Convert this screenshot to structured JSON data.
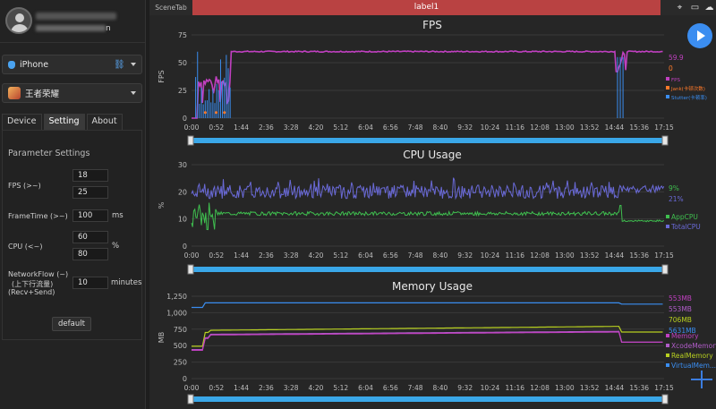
{
  "sidebar": {
    "profile": {
      "name_suffix": "n"
    },
    "device_select": {
      "value": "iPhone"
    },
    "app_select": {
      "value": "王者荣耀"
    },
    "tabs": [
      {
        "label": "Device",
        "active": false
      },
      {
        "label": "Setting",
        "active": true
      },
      {
        "label": "About",
        "active": false
      }
    ],
    "parameter_settings": {
      "title": "Parameter Settings",
      "fps_label": "FPS (>~)",
      "fps_values": [
        "18",
        "25"
      ],
      "frametime_label": "FrameTime (>~)",
      "frametime_value": "100",
      "frametime_unit": "ms",
      "cpu_label": "CPU (<~)",
      "cpu_values": [
        "60",
        "80"
      ],
      "cpu_unit": "%",
      "network_label_1": "NetworkFlow (~)",
      "network_label_2": "(上下行流量)",
      "network_label_3": "(Recv+Send)",
      "network_value": "10",
      "network_unit": "minutes",
      "default_button": "default"
    }
  },
  "topbar": {
    "scene_tab": "SceneTab",
    "label": "label1",
    "icons": [
      "location-pin-icon",
      "folder-icon",
      "cloud-icon"
    ]
  },
  "time_ticks": [
    "0:00",
    "0:52",
    "1:44",
    "2:36",
    "3:28",
    "4:20",
    "5:12",
    "6:04",
    "6:56",
    "7:48",
    "8:40",
    "9:32",
    "10:24",
    "11:16",
    "12:08",
    "13:00",
    "13:52",
    "14:44",
    "15:36",
    "17:15"
  ],
  "chart_data": [
    {
      "type": "line",
      "title": "FPS",
      "xlabel": "",
      "ylabel": "FPS",
      "ylim": [
        0,
        75
      ],
      "yticks": [
        "75",
        "50",
        "25",
        "0"
      ],
      "series": [
        {
          "name": "FPS",
          "color": "#c040c0",
          "current": "59.9"
        },
        {
          "name": "Jank(卡顿次数)",
          "color": "#ff7a2a",
          "current": "0"
        },
        {
          "name": "Stutter(卡顿率)",
          "color": "#3a8df0"
        }
      ],
      "fps_points": [
        [
          0,
          0
        ],
        [
          0.3,
          30
        ],
        [
          0.5,
          35
        ],
        [
          0.7,
          27
        ],
        [
          0.9,
          32
        ],
        [
          1.1,
          29
        ],
        [
          1.3,
          33
        ],
        [
          1.44,
          60
        ],
        [
          1.6,
          60
        ],
        [
          2.5,
          60
        ],
        [
          5,
          60
        ],
        [
          8,
          60
        ],
        [
          11,
          60
        ],
        [
          14,
          60
        ],
        [
          15.5,
          60
        ],
        [
          15.7,
          42
        ],
        [
          15.9,
          59
        ],
        [
          16.2,
          60
        ],
        [
          17.25,
          59.9
        ]
      ],
      "legend": "right"
    },
    {
      "type": "line",
      "title": "CPU Usage",
      "xlabel": "",
      "ylabel": "%",
      "ylim": [
        0,
        30
      ],
      "yticks": [
        "30",
        "20",
        "10",
        "0"
      ],
      "series": [
        {
          "name": "AppCPU",
          "color": "#3fbf4f",
          "current": "9%"
        },
        {
          "name": "TotalCPU",
          "color": "#6a6ad8",
          "current": "21%"
        }
      ],
      "legend": "right"
    },
    {
      "type": "line",
      "title": "Memory Usage",
      "xlabel": "",
      "ylabel": "MB",
      "ylim": [
        0,
        1250
      ],
      "yticks": [
        "1,250",
        "1,000",
        "750",
        "500",
        "250",
        "0"
      ],
      "series": [
        {
          "name": "Memory",
          "color": "#c040c0",
          "current": "553MB"
        },
        {
          "name": "XcodeMemory",
          "color": "#b05cc8",
          "current": "553MB"
        },
        {
          "name": "RealMemory",
          "color": "#b8d020",
          "current": "706MB"
        },
        {
          "name": "VirtualMem...",
          "color": "#3a8df0",
          "current": "5631MB"
        }
      ],
      "legend": "right"
    }
  ]
}
